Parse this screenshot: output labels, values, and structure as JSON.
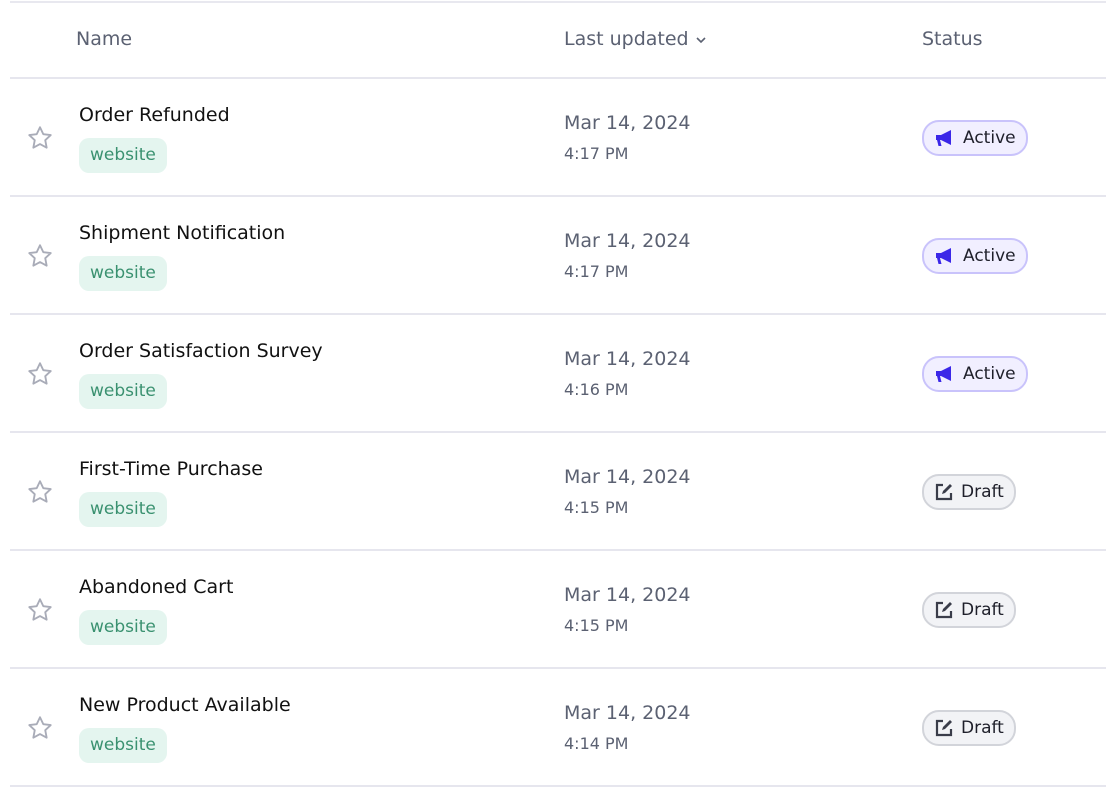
{
  "header": {
    "name": "Name",
    "last_updated": "Last updated",
    "status": "Status"
  },
  "colors": {
    "active_icon": "#3b27e8",
    "tag_text": "#3a9170",
    "tag_bg": "#e4f5ef"
  },
  "rows": [
    {
      "name": "Order Refunded",
      "tag": "website",
      "date": "Mar 14, 2024",
      "time": "4:17 PM",
      "status": "Active",
      "status_icon": "megaphone-icon"
    },
    {
      "name": "Shipment Notification",
      "tag": "website",
      "date": "Mar 14, 2024",
      "time": "4:17 PM",
      "status": "Active",
      "status_icon": "megaphone-icon"
    },
    {
      "name": "Order Satisfaction Survey",
      "tag": "website",
      "date": "Mar 14, 2024",
      "time": "4:16 PM",
      "status": "Active",
      "status_icon": "megaphone-icon"
    },
    {
      "name": "First-Time Purchase",
      "tag": "website",
      "date": "Mar 14, 2024",
      "time": "4:15 PM",
      "status": "Draft",
      "status_icon": "edit-icon"
    },
    {
      "name": "Abandoned Cart",
      "tag": "website",
      "date": "Mar 14, 2024",
      "time": "4:15 PM",
      "status": "Draft",
      "status_icon": "edit-icon"
    },
    {
      "name": "New Product Available",
      "tag": "website",
      "date": "Mar 14, 2024",
      "time": "4:14 PM",
      "status": "Draft",
      "status_icon": "edit-icon"
    }
  ]
}
